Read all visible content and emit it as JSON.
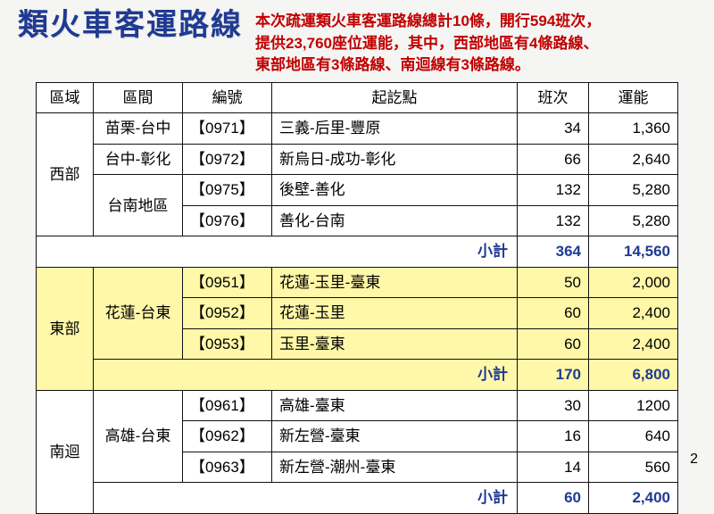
{
  "title": "類火車客運路線",
  "description_line1": "本次疏運類火車客運路線總計10條，開行594班次，",
  "description_line2": "提供23,760座位運能，其中，西部地區有4條路線、",
  "description_line3": "東部地區有3條路線、南迴線有3條路線。",
  "page_number": "2",
  "columns": {
    "region": "區域",
    "segment": "區間",
    "code": "編號",
    "route": "起訖點",
    "trips": "班次",
    "capacity": "運能"
  },
  "subtotal_label": "小計",
  "west": {
    "region": "西部",
    "rows": [
      {
        "segment": "苗栗-台中",
        "code": "【0971】",
        "route": "三義-后里-豐原",
        "trips": "34",
        "capacity": "1,360"
      },
      {
        "segment": "台中-彰化",
        "code": "【0972】",
        "route": "新烏日-成功-彰化",
        "trips": "66",
        "capacity": "2,640"
      },
      {
        "segment": "台南地區",
        "code": "【0975】",
        "route": "後壁-善化",
        "trips": "132",
        "capacity": "5,280"
      },
      {
        "segment": "",
        "code": "【0976】",
        "route": "善化-台南",
        "trips": "132",
        "capacity": "5,280"
      }
    ],
    "subtotal_trips": "364",
    "subtotal_capacity": "14,560"
  },
  "east": {
    "region": "東部",
    "segment": "花蓮-台東",
    "rows": [
      {
        "code": "【0951】",
        "route": "花蓮-玉里-臺東",
        "trips": "50",
        "capacity": "2,000"
      },
      {
        "code": "【0952】",
        "route": "花蓮-玉里",
        "trips": "60",
        "capacity": "2,400"
      },
      {
        "code": "【0953】",
        "route": "玉里-臺東",
        "trips": "60",
        "capacity": "2,400"
      }
    ],
    "subtotal_trips": "170",
    "subtotal_capacity": "6,800"
  },
  "south": {
    "region": "南迴",
    "segment": "高雄-台東",
    "rows": [
      {
        "code": "【0961】",
        "route": "高雄-臺東",
        "trips": "30",
        "capacity": "1200"
      },
      {
        "code": "【0962】",
        "route": "新左營-臺東",
        "trips": "16",
        "capacity": "640"
      },
      {
        "code": "【0963】",
        "route": "新左營-潮州-臺東",
        "trips": "14",
        "capacity": "560"
      }
    ],
    "subtotal_trips": "60",
    "subtotal_capacity": "2,400"
  },
  "styling": {
    "title_color": "#1f3a93",
    "desc_color": "#c00000",
    "subtotal_color": "#1f3a93",
    "highlight_bg": "#fff8a8",
    "border_color": "#111111",
    "page_bg": "#f5f5f3",
    "title_fontsize": 34,
    "desc_fontsize": 17,
    "cell_fontsize": 17
  }
}
